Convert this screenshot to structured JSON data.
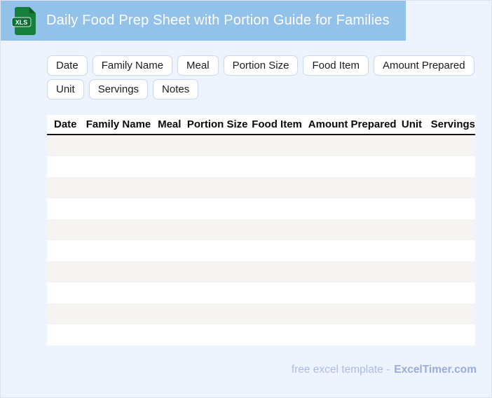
{
  "header": {
    "title": "Daily Food Prep Sheet with Portion Guide for Families",
    "file_badge": "XLS",
    "bar_color": "#92c1ea",
    "icon_color": "#157f3c",
    "icon_fold_color": "#0b5e2a",
    "icon_band_color": "#0e6d33"
  },
  "chips": [
    "Date",
    "Family Name",
    "Meal",
    "Portion Size",
    "Food Item",
    "Amount Prepared",
    "Unit",
    "Servings",
    "Notes"
  ],
  "table": {
    "columns": [
      "Date",
      "Family Name",
      "Meal",
      "Portion Size",
      "Food Item",
      "Amount Prepared",
      "Unit",
      "Servings"
    ],
    "empty_row_count": 10,
    "stripe_color": "#f5f4f2",
    "plain_color": "#ffffff"
  },
  "footer": {
    "prefix": "free excel template -",
    "brand": "ExcelTimer.com"
  },
  "page": {
    "background": "#eef4fd"
  }
}
